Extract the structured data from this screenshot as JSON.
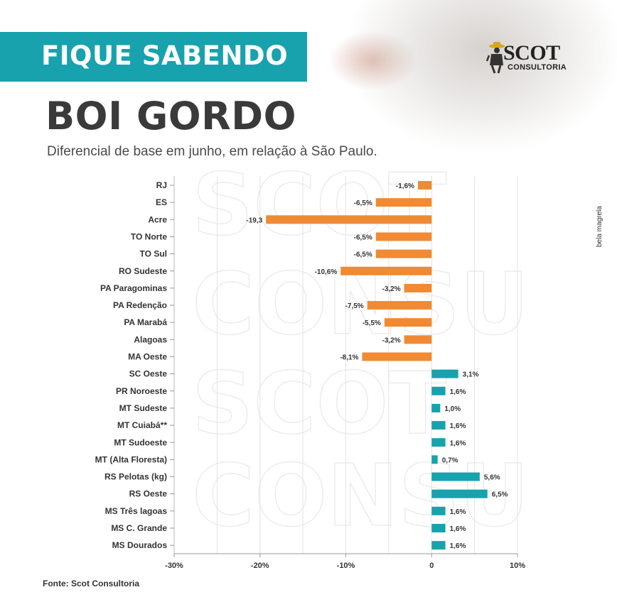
{
  "header": {
    "banner": "FIQUE SABENDO",
    "title": "BOI GORDO",
    "subtitle": "Diferencial de base em junho, em relação à São Paulo."
  },
  "logo": {
    "main": "SCOT",
    "sub": "CONSULTORIA"
  },
  "side_credit": "bela magrela",
  "source": "Fonte: Scot Consultoria",
  "colors": {
    "negative": "#f08a33",
    "positive": "#17a2ad",
    "banner": "#17a2ad"
  },
  "chart_data": {
    "type": "bar",
    "orientation": "horizontal",
    "title": "",
    "xlabel": "",
    "ylabel": "",
    "xlim": [
      -30,
      10
    ],
    "x_ticks": [
      -30,
      -20,
      -10,
      0,
      10
    ],
    "x_tick_labels": [
      "-30%",
      "-20%",
      "-10%",
      "0",
      "10%"
    ],
    "grid": "vertical",
    "categories": [
      "RJ",
      "ES",
      "Acre",
      "TO Norte",
      "TO Sul",
      "RO Sudeste",
      "PA Paragominas",
      "PA Redenção",
      "PA Marabá",
      "Alagoas",
      "MA Oeste",
      "SC Oeste",
      "PR Noroeste",
      "MT Sudeste",
      "MT Cuiabá**",
      "MT Sudoeste",
      "MT (Alta Floresta)",
      "RS Pelotas (kg)",
      "RS Oeste",
      "MS Três lagoas",
      "MS C. Grande",
      "MS Dourados"
    ],
    "values": [
      -1.6,
      -6.5,
      -19.3,
      -6.5,
      -6.5,
      -10.6,
      -3.2,
      -7.5,
      -5.5,
      -3.2,
      -8.1,
      3.1,
      1.6,
      1.0,
      1.6,
      1.6,
      0.7,
      5.6,
      6.5,
      1.6,
      1.6,
      1.6
    ],
    "value_labels": [
      "-1,6%",
      "-6,5%",
      "-19,3",
      "-6,5%",
      "-6,5%",
      "-10,6%",
      "-3,2%",
      "-7,5%",
      "-5,5%",
      "-3,2%",
      "-8,1%",
      "3,1%",
      "1,6%",
      "1,0%",
      "1,6%",
      "1,6%",
      "0,7%",
      "5,6%",
      "6,5%",
      "1,6%",
      "1,6%",
      "1,6%"
    ]
  }
}
